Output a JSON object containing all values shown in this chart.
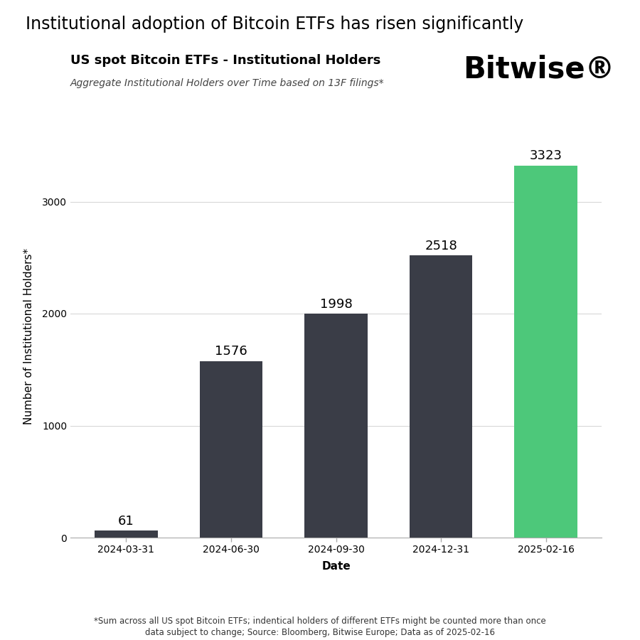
{
  "title_main": "Institutional adoption of Bitcoin ETFs has risen significantly",
  "title_sub": "US spot Bitcoin ETFs - Institutional Holders",
  "subtitle": "Aggregate Institutional Holders over Time based on 13F filings*",
  "brand": "Bitwise®",
  "xlabel": "Date",
  "ylabel": "Number of Institutional Holders*",
  "footnote": "*Sum across all US spot Bitcoin ETFs; indentical holders of different ETFs might be counted more than once\ndata subject to change; Source: Bloomberg, Bitwise Europe; Data as of 2025-02-16",
  "categories": [
    "2024-03-31",
    "2024-06-30",
    "2024-09-30",
    "2024-12-31",
    "2025-02-16"
  ],
  "values": [
    61,
    1576,
    1998,
    2518,
    3323
  ],
  "bar_colors": [
    "#3a3d47",
    "#3a3d47",
    "#3a3d47",
    "#3a3d47",
    "#4dc87a"
  ],
  "background_color": "#ffffff",
  "grid_color": "#d8d8d8",
  "ylim": [
    0,
    3600
  ],
  "yticks": [
    0,
    1000,
    2000,
    3000
  ],
  "title_main_fontsize": 17,
  "title_sub_fontsize": 13,
  "subtitle_fontsize": 10,
  "brand_fontsize": 30,
  "bar_label_fontsize": 13,
  "axis_label_fontsize": 11,
  "tick_fontsize": 10,
  "footnote_fontsize": 8.5
}
